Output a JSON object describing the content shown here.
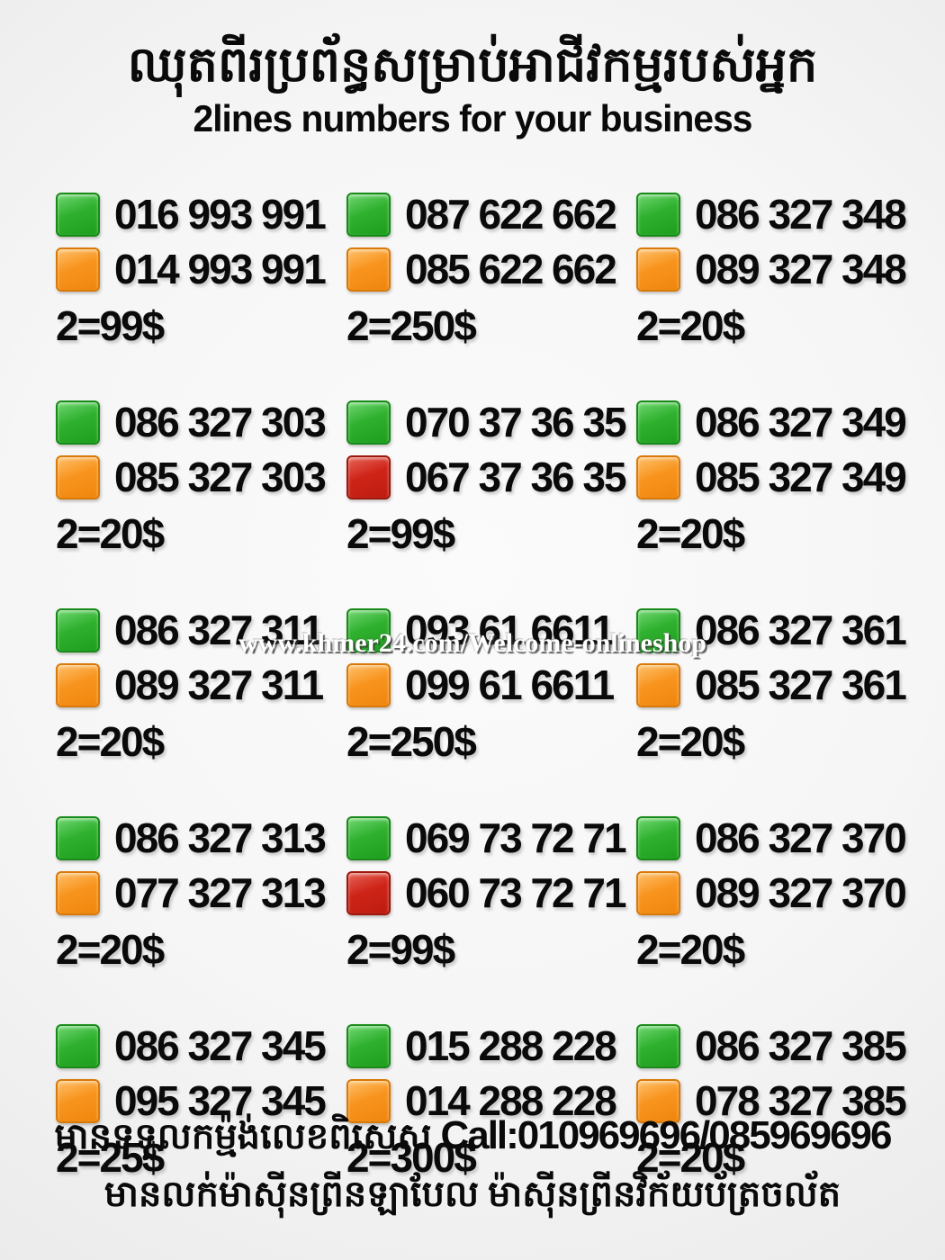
{
  "header": {
    "title_khmer": "ឈុតពីរប្រព័ន្ធសម្រាប់អាជីវកម្មរបស់អ្នក",
    "title_english": "2lines numbers for your business"
  },
  "legend_colors": {
    "green": "#2fb12f",
    "orange": "#f8941e",
    "red": "#cf2418",
    "background": "#f6f6f6",
    "text": "#0a0a0a",
    "watermark_text_color": "#ffffff"
  },
  "watermark": {
    "text": "www.khmer24.com/Welcome-onlineshop"
  },
  "grid": {
    "cells": [
      {
        "line1": {
          "color": "green",
          "number": "016 993 991"
        },
        "line2": {
          "color": "orange",
          "number": "014 993 991"
        },
        "price": "2=99$"
      },
      {
        "line1": {
          "color": "green",
          "number": "087 622 662"
        },
        "line2": {
          "color": "orange",
          "number": "085 622 662"
        },
        "price": "2=250$"
      },
      {
        "line1": {
          "color": "green",
          "number": "086 327 348"
        },
        "line2": {
          "color": "orange",
          "number": "089 327 348"
        },
        "price": "2=20$"
      },
      {
        "line1": {
          "color": "green",
          "number": "086 327 303"
        },
        "line2": {
          "color": "orange",
          "number": "085 327 303"
        },
        "price": "2=20$"
      },
      {
        "line1": {
          "color": "green",
          "number": "070 37 36 35"
        },
        "line2": {
          "color": "red",
          "number": "067 37 36 35"
        },
        "price": "2=99$"
      },
      {
        "line1": {
          "color": "green",
          "number": "086 327 349"
        },
        "line2": {
          "color": "orange",
          "number": "085 327 349"
        },
        "price": "2=20$"
      },
      {
        "line1": {
          "color": "green",
          "number": "086 327 311"
        },
        "line2": {
          "color": "orange",
          "number": "089 327 311"
        },
        "price": "2=20$"
      },
      {
        "line1": {
          "color": "green",
          "number": "093 61 6611"
        },
        "line2": {
          "color": "orange",
          "number": "099 61 6611"
        },
        "price": "2=250$"
      },
      {
        "line1": {
          "color": "green",
          "number": "086 327 361"
        },
        "line2": {
          "color": "orange",
          "number": "085 327 361"
        },
        "price": "2=20$"
      },
      {
        "line1": {
          "color": "green",
          "number": "086 327 313"
        },
        "line2": {
          "color": "orange",
          "number": "077 327 313"
        },
        "price": "2=20$"
      },
      {
        "line1": {
          "color": "green",
          "number": "069 73 72 71"
        },
        "line2": {
          "color": "red",
          "number": "060 73 72 71"
        },
        "price": "2=99$"
      },
      {
        "line1": {
          "color": "green",
          "number": "086 327 370"
        },
        "line2": {
          "color": "orange",
          "number": "089 327 370"
        },
        "price": "2=20$"
      },
      {
        "line1": {
          "color": "green",
          "number": "086 327 345"
        },
        "line2": {
          "color": "orange",
          "number": "095 327 345"
        },
        "price": "2=25$"
      },
      {
        "line1": {
          "color": "green",
          "number": "015 288 228"
        },
        "line2": {
          "color": "orange",
          "number": "014 288 228"
        },
        "price": "2=300$"
      },
      {
        "line1": {
          "color": "green",
          "number": "086 327 385"
        },
        "line2": {
          "color": "orange",
          "number": "078 327 385"
        },
        "price": "2=20$"
      }
    ]
  },
  "footer": {
    "line1_khmer": "មានទទួលកម្ម៉ង់លេខពិសេស",
    "line1_call": "Call:010969696/085969696",
    "line2_khmer": "មានលក់ម៉ាស៊ីនព្រីនឡាបែល ម៉ាស៊ីនព្រីនវិក័យប័ត្រចល័ត"
  }
}
